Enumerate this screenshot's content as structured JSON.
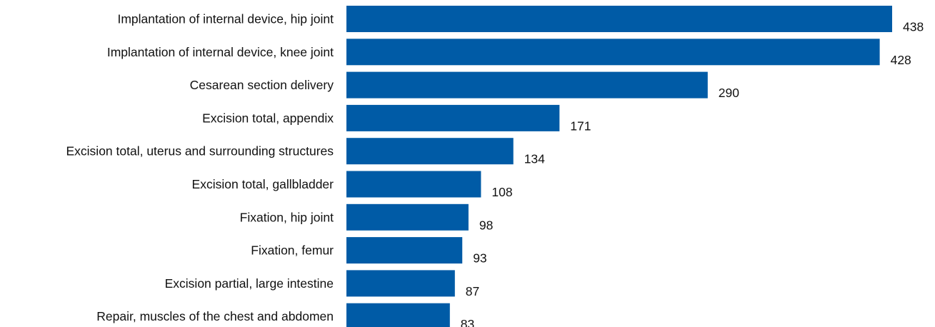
{
  "chart_data": {
    "type": "bar",
    "orientation": "horizontal",
    "title": "",
    "xlabel": "",
    "ylabel": "",
    "grid": false,
    "legend": "none",
    "bar_color": "#005ba6",
    "xlim": [
      0,
      438
    ],
    "categories": [
      "Implantation of internal device, hip joint",
      "Implantation of internal device, knee joint",
      "Cesarean section delivery",
      "Excision total, appendix",
      "Excision total, uterus and surrounding structures",
      "Excision total, gallbladder",
      "Fixation, hip joint",
      "Fixation, femur",
      "Excision partial, large intestine",
      "Repair, muscles of the chest and abdomen"
    ],
    "values": [
      438,
      428,
      290,
      171,
      134,
      108,
      98,
      93,
      87,
      83
    ]
  }
}
